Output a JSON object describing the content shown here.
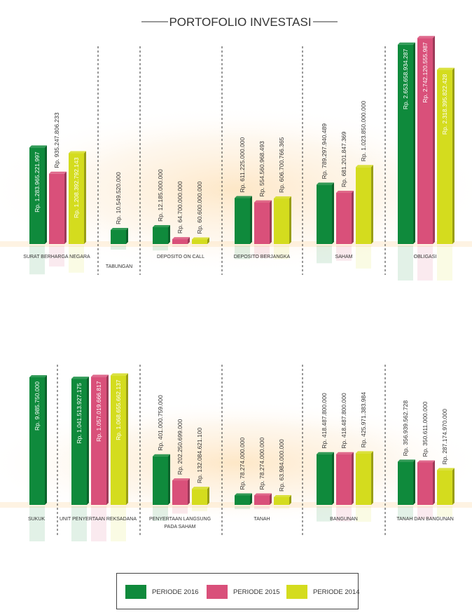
{
  "title": "PORTOFOLIO INVESTASI",
  "colors": {
    "p2016": "#0f8a3c",
    "p2015": "#d9507a",
    "p2014": "#d4dc1e"
  },
  "legend": [
    {
      "label": "PERIODE 2016",
      "color": "#0f8a3c"
    },
    {
      "label": "PERIODE 2015",
      "color": "#d9507a"
    },
    {
      "label": "PERIODE 2014",
      "color": "#d4dc1e"
    }
  ],
  "chart_data": [
    {
      "type": "bar",
      "series": [
        {
          "name": "PERIODE 2016"
        },
        {
          "name": "PERIODE 2015"
        },
        {
          "name": "PERIODE 2014"
        }
      ],
      "categories": [
        "SURAT BERHARGA NEGARA",
        "TABUNGAN",
        "DEPOSITO ON CALL",
        "DEPOSITO BERJANGKA",
        "SAHAM",
        "OBLIGASI"
      ],
      "groups": [
        {
          "category": "SURAT BERHARGA NEGARA",
          "values": [
            1283965221997,
            935247806233,
            1208392792143
          ],
          "labels": [
            "Rp. 1.283.965.221.997",
            "Rp. 935.247.806.233",
            "Rp. 1.208.392.792.143"
          ]
        },
        {
          "category": "TABUNGAN",
          "values": [
            10549520000
          ],
          "labels": [
            "Rp. 10.549.520.000"
          ]
        },
        {
          "category": "DEPOSITO ON CALL",
          "values": [
            12185000000,
            64700000000,
            60600000000
          ],
          "labels": [
            "Rp. 12.185.000.000",
            "Rp. 64.700.000.000",
            "Rp. 60.600.000.000"
          ]
        },
        {
          "category": "DEPOSITO BERJANGKA",
          "values": [
            611225000000,
            554560968493,
            606700766365
          ],
          "labels": [
            "Rp. 611.225.000.000",
            "Rp. 554.560.968.493",
            "Rp. 606.700.766.365"
          ]
        },
        {
          "category": "SAHAM",
          "values": [
            789297940489,
            681201847369,
            1023850000000
          ],
          "labels": [
            "Rp. 789.297.940.489",
            "Rp. 681.201.847.369",
            "Rp. 1.023.850.000.000"
          ]
        },
        {
          "category": "OBLIGASI",
          "values": [
            2653658934287,
            2742120555987,
            2318395822428
          ],
          "labels": [
            "Rp. 2.653.658.934.287",
            "Rp. 2.742.120.555.987",
            "Rp. 2.318.395.822.428"
          ]
        }
      ]
    },
    {
      "type": "bar",
      "series": [
        {
          "name": "PERIODE 2016"
        },
        {
          "name": "PERIODE 2015"
        },
        {
          "name": "PERIODE 2014"
        }
      ],
      "categories": [
        "SUKUK",
        "UNIT PENYERTAAN REKSADANA",
        "PENYERTAAN LANGSUNG PADA SAHAM",
        "TANAH",
        "BANGUNAN",
        "TANAH DAN BANGUNAN"
      ],
      "groups": [
        {
          "category": "SUKUK",
          "values": [
            9985750000
          ],
          "labels": [
            "Rp. 9.985.750.000"
          ]
        },
        {
          "category": "UNIT PENYERTAAN REKSADANA",
          "values": [
            1041513927175,
            1057019666817,
            1068655662137
          ],
          "labels": [
            "Rp. 1.041.513.927.175",
            "Rp. 1.057.019.666.817",
            "Rp. 1.068.655.662.137"
          ]
        },
        {
          "category": "PENYERTAAN LANGSUNG PADA SAHAM",
          "values": [
            401000759000,
            202250699000,
            132084621100
          ],
          "labels": [
            "Rp. 401.000.759.000",
            "Rp. 202.250.699.000",
            "Rp. 132.084.621.100"
          ]
        },
        {
          "category": "TANAH",
          "values": [
            78274000000,
            78274000000,
            63984000000
          ],
          "labels": [
            "Rp. 78.274.000.000",
            "Rp. 78.274.000.000",
            "Rp. 63.984.000.000"
          ]
        },
        {
          "category": "BANGUNAN",
          "values": [
            418487800000,
            418487800000,
            425971383984
          ],
          "labels": [
            "Rp. 418.487.800.000",
            "Rp. 418.487.800.000",
            "Rp. 425.971.383.984"
          ]
        },
        {
          "category": "TANAH DAN BANGUNAN",
          "values": [
            356939562728,
            350611000000,
            287174970000
          ],
          "labels": [
            "Rp. 356.939.562.728",
            "Rp. 350.611.000.000",
            "Rp. 287.174.970.000"
          ]
        }
      ]
    }
  ]
}
